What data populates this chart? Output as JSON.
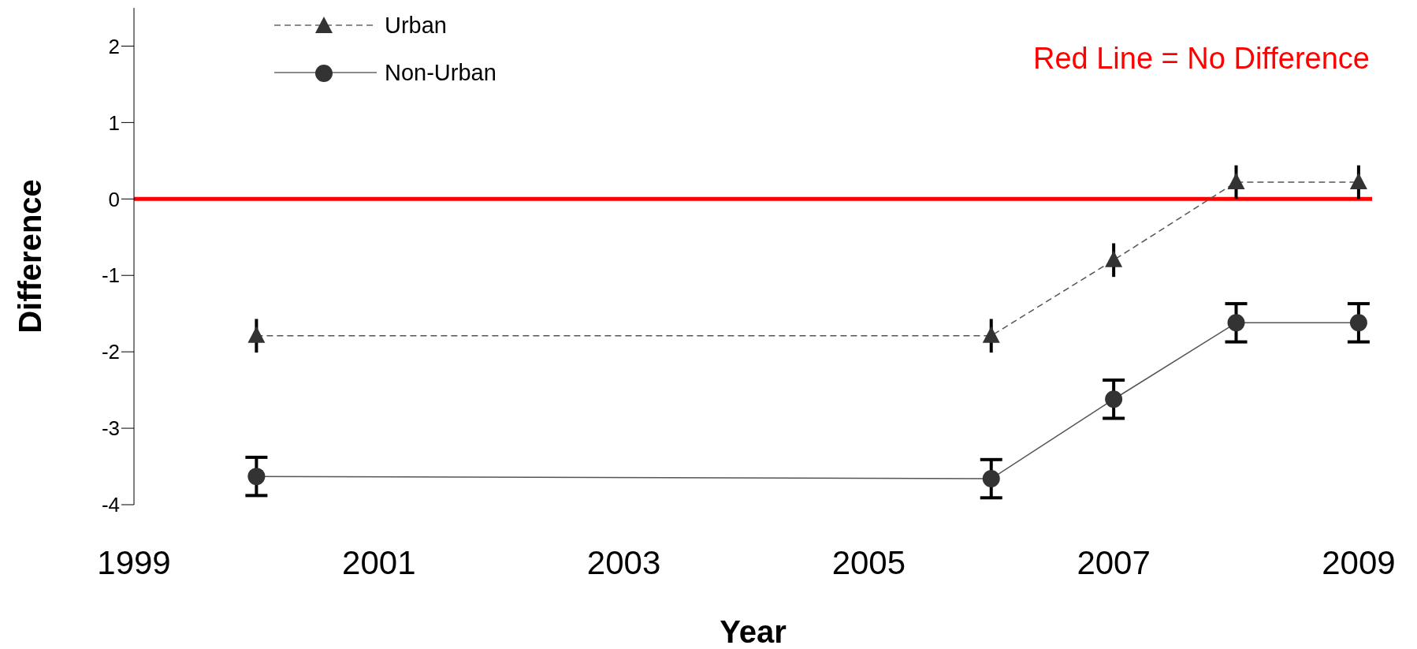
{
  "chart_data": {
    "type": "line",
    "xlabel": "Year",
    "ylabel": "Difference",
    "x": [
      2000,
      2006,
      2007,
      2008,
      2009
    ],
    "series": [
      {
        "name": "Urban",
        "color": "#333333",
        "values": [
          -1.79,
          -1.79,
          -0.8,
          0.22,
          0.22
        ],
        "errors": [
          0.22,
          0.22,
          0.22,
          0.22,
          0.22
        ],
        "marker": "triangle",
        "line_style": "dashed"
      },
      {
        "name": "Non-Urban",
        "color": "#333333",
        "values": [
          -3.63,
          -3.66,
          -2.62,
          -1.62,
          -1.62
        ],
        "errors": [
          0.25,
          0.25,
          0.25,
          0.25,
          0.25
        ],
        "marker": "circle",
        "line_style": "solid"
      }
    ],
    "xlim": [
      1999,
      2009.11
    ],
    "xticks": [
      1999,
      2001,
      2003,
      2005,
      2007,
      2009
    ],
    "ylim": [
      -4,
      2.5
    ],
    "yticks": [
      -4,
      -3,
      -2,
      -1,
      0,
      1,
      2
    ],
    "ref_lines": [
      {
        "axis": "y",
        "value": 0,
        "color": "#ff0000"
      }
    ],
    "annotations": [
      "Red Line = No Difference"
    ],
    "legend": "top left",
    "grid": false
  }
}
